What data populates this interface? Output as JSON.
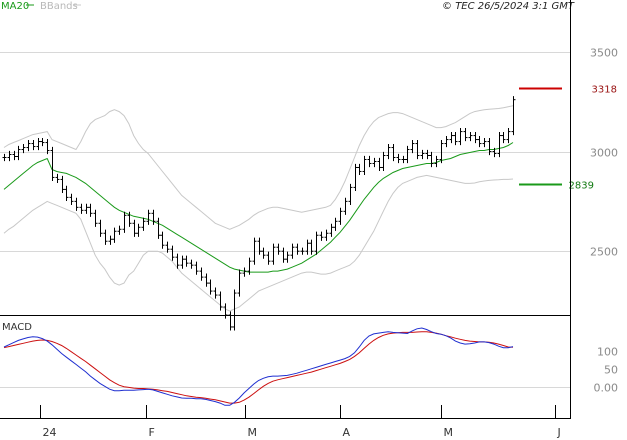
{
  "header": {
    "legend_ma": "MA20",
    "legend_bb": "BBands",
    "credit": "© TEC 26/5/2024 3:1 GMT"
  },
  "colors": {
    "ma": "#1a9a1a",
    "bands": "#c8c8c8",
    "price": "#000000",
    "resistance": "#cc0000",
    "support": "#1a9a1a",
    "macd": "#1f2fd0",
    "signal": "#cc1010",
    "grid": "#d8d8d8"
  },
  "chart_data": [
    {
      "type": "line",
      "panel": "price",
      "x_tick_labels": [
        "24",
        "F",
        "M",
        "A",
        "M",
        "J"
      ],
      "y_ticks": [
        2500,
        3000,
        3500
      ],
      "y_tick_labels": [
        "2500",
        "3000",
        "3500"
      ],
      "ylim": [
        2180,
        3760
      ],
      "levels": [
        {
          "name": "resistance",
          "value": 3318,
          "label": "3318"
        },
        {
          "name": "support",
          "value": 2839,
          "label": "2839"
        }
      ],
      "series": [
        {
          "name": "price-bars",
          "values": [
            2970,
            2985,
            2975,
            3010,
            3020,
            3040,
            3025,
            3050,
            3045,
            3005,
            2870,
            2860,
            2810,
            2770,
            2750,
            2720,
            2705,
            2720,
            2690,
            2640,
            2590,
            2550,
            2560,
            2600,
            2610,
            2680,
            2640,
            2590,
            2620,
            2650,
            2690,
            2650,
            2580,
            2530,
            2510,
            2470,
            2430,
            2460,
            2440,
            2430,
            2400,
            2370,
            2340,
            2300,
            2280,
            2220,
            2180,
            2120,
            2290,
            2390,
            2400,
            2450,
            2550,
            2500,
            2480,
            2450,
            2520,
            2500,
            2460,
            2480,
            2520,
            2500,
            2500,
            2540,
            2500,
            2580,
            2570,
            2590,
            2620,
            2650,
            2700,
            2750,
            2820,
            2920,
            2900,
            2960,
            2940,
            2950,
            2920,
            2980,
            3020,
            2970,
            2960,
            2960,
            3010,
            3040,
            2980,
            2990,
            2980,
            2940,
            2960,
            3040,
            3060,
            3080,
            3050,
            3100,
            3070,
            3080,
            3060,
            3040,
            3050,
            3000,
            2990,
            3080,
            3060,
            3100,
            3260
          ]
        },
        {
          "name": "ma20",
          "values": [
            2810,
            2830,
            2850,
            2870,
            2890,
            2910,
            2930,
            2945,
            2955,
            2965,
            2910,
            2900,
            2895,
            2890,
            2880,
            2870,
            2855,
            2840,
            2820,
            2800,
            2780,
            2760,
            2740,
            2720,
            2705,
            2695,
            2685,
            2675,
            2670,
            2665,
            2660,
            2650,
            2640,
            2630,
            2615,
            2600,
            2585,
            2570,
            2555,
            2540,
            2525,
            2510,
            2495,
            2480,
            2465,
            2450,
            2435,
            2420,
            2410,
            2405,
            2400,
            2395,
            2395,
            2395,
            2395,
            2395,
            2400,
            2400,
            2405,
            2410,
            2420,
            2430,
            2440,
            2455,
            2470,
            2485,
            2505,
            2525,
            2545,
            2570,
            2595,
            2625,
            2655,
            2690,
            2725,
            2760,
            2790,
            2820,
            2845,
            2865,
            2880,
            2895,
            2905,
            2915,
            2920,
            2925,
            2930,
            2935,
            2940,
            2940,
            2945,
            2955,
            2960,
            2965,
            2975,
            2985,
            2990,
            2995,
            3000,
            3005,
            3005,
            3010,
            3010,
            3015,
            3020,
            3030,
            3045
          ]
        },
        {
          "name": "bbands-upper",
          "values": [
            3020,
            3035,
            3045,
            3055,
            3065,
            3075,
            3085,
            3090,
            3095,
            3100,
            3060,
            3050,
            3040,
            3030,
            3020,
            3010,
            3050,
            3100,
            3140,
            3160,
            3170,
            3180,
            3200,
            3210,
            3200,
            3180,
            3140,
            3080,
            3040,
            3010,
            2990,
            2960,
            2930,
            2900,
            2870,
            2840,
            2810,
            2780,
            2760,
            2740,
            2720,
            2700,
            2680,
            2660,
            2640,
            2630,
            2620,
            2610,
            2620,
            2630,
            2645,
            2660,
            2680,
            2695,
            2705,
            2715,
            2720,
            2720,
            2715,
            2710,
            2705,
            2700,
            2695,
            2700,
            2705,
            2710,
            2715,
            2720,
            2730,
            2760,
            2800,
            2850,
            2910,
            2970,
            3030,
            3080,
            3120,
            3150,
            3170,
            3180,
            3190,
            3195,
            3195,
            3190,
            3180,
            3170,
            3160,
            3150,
            3140,
            3130,
            3120,
            3120,
            3125,
            3135,
            3145,
            3160,
            3175,
            3190,
            3200,
            3205,
            3210,
            3212,
            3214,
            3216,
            3220,
            3225,
            3230
          ]
        },
        {
          "name": "bbands-lower",
          "values": [
            2590,
            2610,
            2625,
            2645,
            2665,
            2685,
            2705,
            2720,
            2735,
            2750,
            2740,
            2730,
            2720,
            2710,
            2700,
            2690,
            2660,
            2600,
            2540,
            2480,
            2440,
            2410,
            2370,
            2340,
            2330,
            2340,
            2380,
            2400,
            2440,
            2480,
            2500,
            2500,
            2500,
            2490,
            2470,
            2450,
            2420,
            2390,
            2370,
            2350,
            2330,
            2310,
            2290,
            2270,
            2250,
            2230,
            2210,
            2200,
            2210,
            2220,
            2240,
            2260,
            2280,
            2300,
            2310,
            2320,
            2330,
            2340,
            2350,
            2360,
            2370,
            2380,
            2390,
            2395,
            2395,
            2390,
            2385,
            2385,
            2390,
            2400,
            2410,
            2420,
            2430,
            2450,
            2480,
            2520,
            2560,
            2600,
            2650,
            2700,
            2750,
            2790,
            2820,
            2840,
            2850,
            2860,
            2870,
            2875,
            2880,
            2875,
            2870,
            2865,
            2860,
            2855,
            2850,
            2845,
            2840,
            2840,
            2842,
            2848,
            2852,
            2855,
            2857,
            2858,
            2860,
            2860,
            2862
          ]
        }
      ]
    },
    {
      "type": "line",
      "panel": "macd",
      "title": "MACD",
      "y_ticks": [
        100,
        50,
        0
      ],
      "y_tick_labels": [
        "100",
        "50",
        "0.00"
      ],
      "ylim": [
        -85,
        195
      ],
      "series": [
        {
          "name": "macd",
          "values": [
            110,
            116,
            122,
            128,
            132,
            136,
            138,
            137,
            133,
            126,
            116,
            104,
            92,
            82,
            72,
            62,
            52,
            42,
            30,
            20,
            10,
            2,
            -6,
            -10,
            -10,
            -9,
            -9,
            -9,
            -8,
            -7,
            -6,
            -8,
            -12,
            -16,
            -20,
            -24,
            -27,
            -30,
            -31,
            -31,
            -32,
            -32,
            -34,
            -37,
            -40,
            -44,
            -50,
            -50,
            -42,
            -30,
            -16,
            -4,
            8,
            18,
            24,
            28,
            30,
            30,
            31,
            32,
            35,
            38,
            42,
            46,
            50,
            54,
            58,
            62,
            66,
            70,
            74,
            78,
            84,
            94,
            110,
            128,
            140,
            146,
            148,
            150,
            152,
            150,
            149,
            148,
            147,
            154,
            160,
            162,
            158,
            152,
            147,
            145,
            141,
            135,
            126,
            121,
            118,
            119,
            121,
            124,
            124,
            122,
            118,
            112,
            108,
            108,
            111
          ]
        },
        {
          "name": "signal",
          "values": [
            108,
            111,
            114,
            117,
            120,
            123,
            126,
            128,
            129,
            128,
            125,
            120,
            114,
            106,
            97,
            88,
            79,
            70,
            60,
            50,
            40,
            30,
            20,
            12,
            5,
            1,
            -1,
            -3,
            -4,
            -4,
            -5,
            -6,
            -8,
            -10,
            -12,
            -15,
            -18,
            -21,
            -24,
            -26,
            -28,
            -29,
            -31,
            -33,
            -35,
            -38,
            -41,
            -44,
            -44,
            -42,
            -36,
            -28,
            -18,
            -8,
            2,
            10,
            16,
            20,
            23,
            26,
            29,
            32,
            35,
            38,
            41,
            45,
            49,
            53,
            57,
            61,
            65,
            70,
            76,
            84,
            94,
            106,
            118,
            128,
            136,
            142,
            146,
            148,
            149,
            150,
            150,
            150,
            151,
            152,
            152,
            150,
            148,
            145,
            141,
            138,
            134,
            131,
            128,
            126,
            125,
            124,
            124,
            123,
            121,
            118,
            114,
            110,
            109
          ]
        }
      ]
    }
  ]
}
